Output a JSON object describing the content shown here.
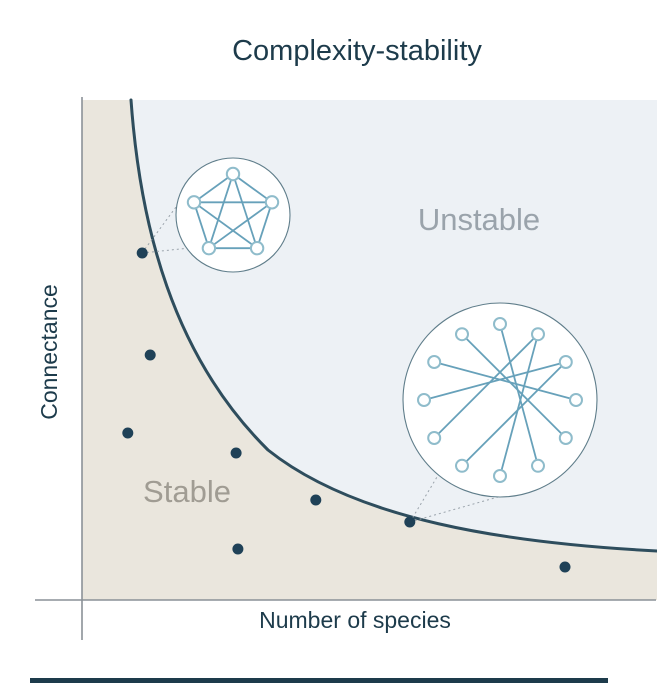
{
  "title": "Complexity-stability",
  "colors": {
    "ink": "#1d3b4b",
    "curve": "#2e4d5d",
    "dot": "#1f4157",
    "stable_fill": "#eae6dd",
    "unstable_fill": "#edf1f5",
    "axis": "#8a9197",
    "net_edge": "#67a1ba",
    "net_node_stroke": "#8fbccb",
    "inset_stroke": "#5f7d8a",
    "muted_label": "#9aa3ab",
    "stable_label": "#a09c93",
    "connector": "#9aa3ab"
  },
  "chart_data": {
    "type": "scatter",
    "title": "Complexity-stability",
    "xlabel": "Number of species",
    "ylabel": "Connectance",
    "x_range": [
      0,
      1
    ],
    "y_range": [
      0,
      1
    ],
    "tick_labels": [],
    "grid": false,
    "points": [
      {
        "x": 0.105,
        "y": 0.694
      },
      {
        "x": 0.119,
        "y": 0.49
      },
      {
        "x": 0.08,
        "y": 0.334
      },
      {
        "x": 0.269,
        "y": 0.294
      },
      {
        "x": 0.408,
        "y": 0.2
      },
      {
        "x": 0.572,
        "y": 0.156
      },
      {
        "x": 0.272,
        "y": 0.102
      },
      {
        "x": 0.843,
        "y": 0.066
      }
    ],
    "boundary_curve": {
      "description": "Monotonically decreasing hyperbola-like boundary separating stable (below/left) from unstable (above/right)",
      "anchors": [
        {
          "x": 0.086,
          "y": 1.0
        },
        {
          "x": 0.325,
          "y": 0.3
        },
        {
          "x": 1.0,
          "y": 0.1
        }
      ]
    },
    "regions": [
      {
        "label": "Stable",
        "position": "below curve",
        "fill": "#eae6dd"
      },
      {
        "label": "Unstable",
        "position": "above curve",
        "fill": "#edf1f5"
      }
    ],
    "insets": [
      {
        "label": "dense network: few species, high connectance",
        "nodes": 5,
        "edges": "complete",
        "linked_point_index": 0
      },
      {
        "label": "sparse network: many species, low connectance",
        "nodes": 12,
        "edges": [
          [
            0,
            5
          ],
          [
            11,
            4
          ],
          [
            1,
            8
          ],
          [
            2,
            9
          ],
          [
            10,
            3
          ],
          [
            1,
            6
          ],
          [
            7,
            2
          ]
        ],
        "linked_point_index": 5
      }
    ]
  }
}
